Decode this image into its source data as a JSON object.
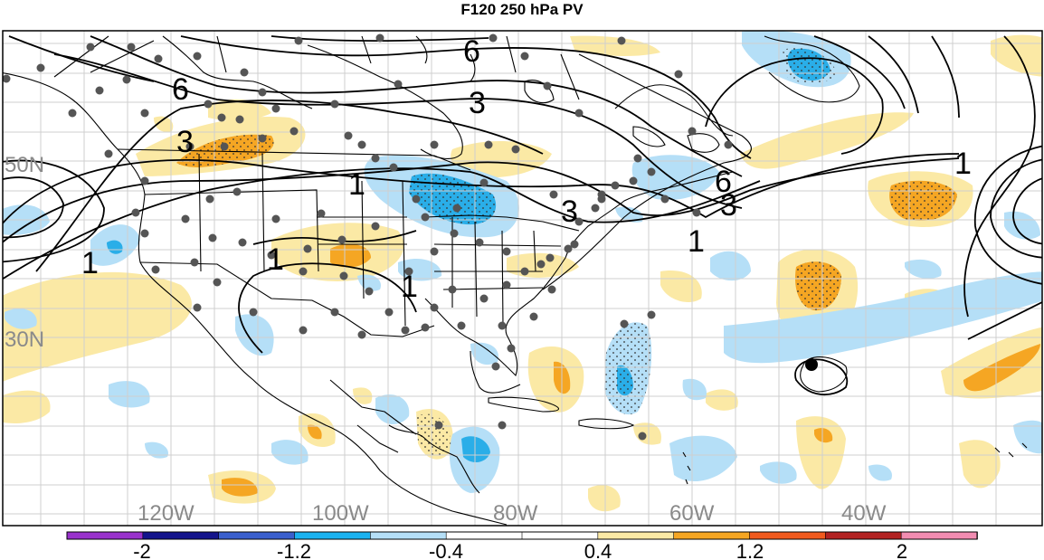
{
  "title": "F120 250 hPa PV",
  "map": {
    "lon_labels": [
      "120W",
      "100W",
      "80W",
      "60W",
      "40W"
    ],
    "lat_labels": [
      "50N",
      "30N"
    ],
    "contour_labels": [
      "6",
      "6",
      "3",
      "3",
      "3",
      "1",
      "1",
      "1",
      "1",
      "1",
      "6",
      "3",
      "1"
    ],
    "station_color": "#555555",
    "positive_colors": [
      "#fbe9a5",
      "#f5a623"
    ],
    "negative_colors": [
      "#b5dff7",
      "#2aaee8"
    ]
  },
  "colorbar": {
    "tick_labels": [
      "-2",
      "-1.2",
      "-0.4",
      "0.4",
      "1.2",
      "2"
    ],
    "colors": [
      "#9932cc",
      "#14148c",
      "#3a5fcd",
      "#1ab2f0",
      "#b5dff7",
      "#ffffff",
      "#ffffff",
      "#fbe9a5",
      "#f5a623",
      "#f05a1e",
      "#b22222",
      "#f28cb1"
    ]
  }
}
